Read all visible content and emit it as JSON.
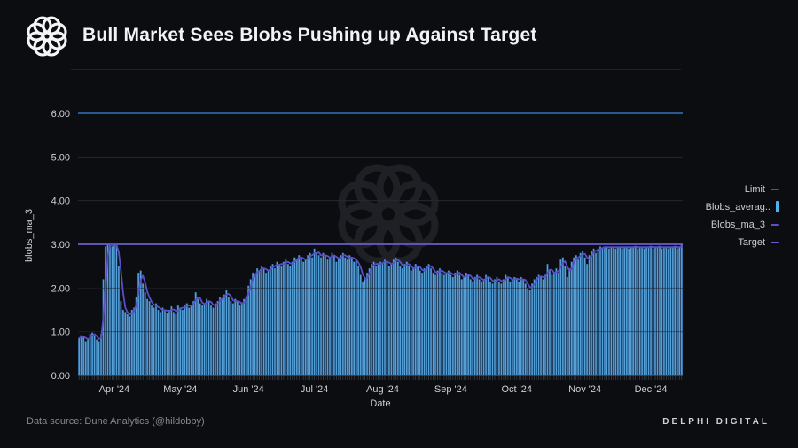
{
  "header": {
    "title": "Bull Market Sees Blobs Pushing up Against Target"
  },
  "footer": {
    "source": "Data source: Dune Analytics (@hildobby)",
    "brand": "DELPHI DIGITAL"
  },
  "legend": {
    "items": [
      {
        "label": "Limit",
        "color": "#2e64ab",
        "type": "dash"
      },
      {
        "label": "Blobs_averag..",
        "color": "#4db3ea",
        "type": "bar"
      },
      {
        "label": "Blobs_ma_3",
        "color": "#5b50c6",
        "type": "dash"
      },
      {
        "label": "Target",
        "color": "#675ecb",
        "type": "dash"
      }
    ]
  },
  "colors": {
    "background": "#0c0d10",
    "bar_fill": "#55a0d6",
    "bar_edge": "#26578c",
    "ma_line": "#5a4fc8",
    "limit_line": "#2e64ab",
    "target_line": "#675ecb",
    "gridline": "#26282d",
    "tick_text": "#ced0d4",
    "watermark": "#1e2025"
  },
  "chart_data": {
    "type": "bar",
    "title": "Bull Market Sees Blobs Pushing up Against Target",
    "xlabel": "Date",
    "ylabel": "blobs_ma_3",
    "ylim": [
      0,
      6.3
    ],
    "grid": true,
    "legend_position": "right",
    "start_date": "2024-03-16",
    "end_date": "2024-12-15",
    "y_tick_values": [
      0,
      1,
      2,
      3,
      4,
      5,
      6
    ],
    "y_tick_labels": [
      "0.00",
      "1.00",
      "2.00",
      "3.00",
      "4.00",
      "5.00",
      "6.00"
    ],
    "x_tick_indices": [
      16,
      46,
      77,
      107,
      138,
      169,
      199,
      230,
      260
    ],
    "x_tick_labels": [
      "Apr '24",
      "May '24",
      "Jun '24",
      "Jul '24",
      "Aug '24",
      "Sep '24",
      "Oct '24",
      "Nov '24",
      "Dec '24"
    ],
    "hlines": [
      {
        "name": "Limit",
        "value": 6,
        "color": "#2e64ab"
      },
      {
        "name": "Target",
        "value": 3,
        "color": "#675ecb"
      }
    ],
    "ma_window": 3,
    "series": [
      {
        "name": "Blobs_average",
        "type": "bar",
        "color": "#55a0d6",
        "values": [
          0.85,
          0.92,
          0.88,
          0.78,
          0.82,
          0.95,
          0.98,
          0.9,
          0.82,
          0.78,
          0.95,
          2.2,
          2.95,
          3.0,
          3.0,
          2.95,
          3.0,
          3.0,
          2.5,
          1.7,
          1.5,
          1.45,
          1.4,
          1.35,
          1.5,
          1.55,
          1.8,
          2.35,
          2.4,
          2.1,
          1.9,
          1.75,
          1.7,
          1.6,
          1.55,
          1.65,
          1.5,
          1.45,
          1.55,
          1.48,
          1.42,
          1.5,
          1.58,
          1.45,
          1.4,
          1.6,
          1.55,
          1.5,
          1.6,
          1.65,
          1.55,
          1.6,
          1.7,
          1.9,
          1.75,
          1.65,
          1.6,
          1.65,
          1.75,
          1.7,
          1.6,
          1.55,
          1.65,
          1.7,
          1.8,
          1.75,
          1.85,
          1.95,
          1.8,
          1.7,
          1.65,
          1.75,
          1.7,
          1.6,
          1.65,
          1.75,
          1.8,
          2.05,
          2.2,
          2.35,
          2.3,
          2.45,
          2.4,
          2.5,
          2.45,
          2.35,
          2.4,
          2.5,
          2.55,
          2.45,
          2.6,
          2.55,
          2.5,
          2.6,
          2.65,
          2.55,
          2.5,
          2.6,
          2.7,
          2.65,
          2.75,
          2.7,
          2.6,
          2.65,
          2.75,
          2.8,
          2.7,
          2.9,
          2.8,
          2.75,
          2.7,
          2.8,
          2.75,
          2.65,
          2.7,
          2.8,
          2.75,
          2.6,
          2.7,
          2.75,
          2.8,
          2.7,
          2.65,
          2.75,
          2.7,
          2.6,
          2.65,
          2.5,
          2.3,
          2.15,
          2.2,
          2.35,
          2.45,
          2.55,
          2.6,
          2.5,
          2.55,
          2.6,
          2.55,
          2.65,
          2.6,
          2.5,
          2.55,
          2.65,
          2.7,
          2.6,
          2.5,
          2.45,
          2.55,
          2.6,
          2.5,
          2.4,
          2.45,
          2.55,
          2.5,
          2.4,
          2.35,
          2.45,
          2.5,
          2.55,
          2.45,
          2.35,
          2.3,
          2.4,
          2.45,
          2.35,
          2.3,
          2.35,
          2.4,
          2.3,
          2.25,
          2.35,
          2.4,
          2.3,
          2.2,
          2.25,
          2.35,
          2.3,
          2.2,
          2.15,
          2.25,
          2.3,
          2.2,
          2.15,
          2.2,
          2.3,
          2.25,
          2.15,
          2.1,
          2.2,
          2.25,
          2.15,
          2.1,
          2.2,
          2.3,
          2.25,
          2.15,
          2.2,
          2.25,
          2.2,
          2.15,
          2.25,
          2.2,
          2.1,
          2.0,
          1.95,
          2.1,
          2.2,
          2.25,
          2.3,
          2.25,
          2.2,
          2.3,
          2.55,
          2.4,
          2.3,
          2.35,
          2.45,
          2.35,
          2.65,
          2.7,
          2.5,
          2.25,
          2.45,
          2.6,
          2.7,
          2.75,
          2.65,
          2.8,
          2.85,
          2.7,
          2.55,
          2.75,
          2.85,
          2.9,
          2.8,
          2.9,
          2.95,
          2.9,
          2.95,
          2.95,
          2.9,
          2.95,
          2.95,
          2.9,
          2.95,
          2.95,
          2.9,
          2.95,
          2.95,
          2.9,
          2.95,
          2.95,
          2.95,
          2.9,
          2.95,
          2.95,
          2.9,
          2.95,
          2.95,
          2.95,
          2.9,
          2.95,
          2.95,
          2.95,
          2.9,
          2.95,
          2.95,
          2.9,
          2.95,
          2.95,
          2.95,
          2.9,
          2.95,
          3.0
        ]
      },
      {
        "name": "Blobs_ma_3",
        "type": "line",
        "color": "#5a4fc8",
        "derived": "moving_average_of_Blobs_average_window_3"
      }
    ]
  }
}
